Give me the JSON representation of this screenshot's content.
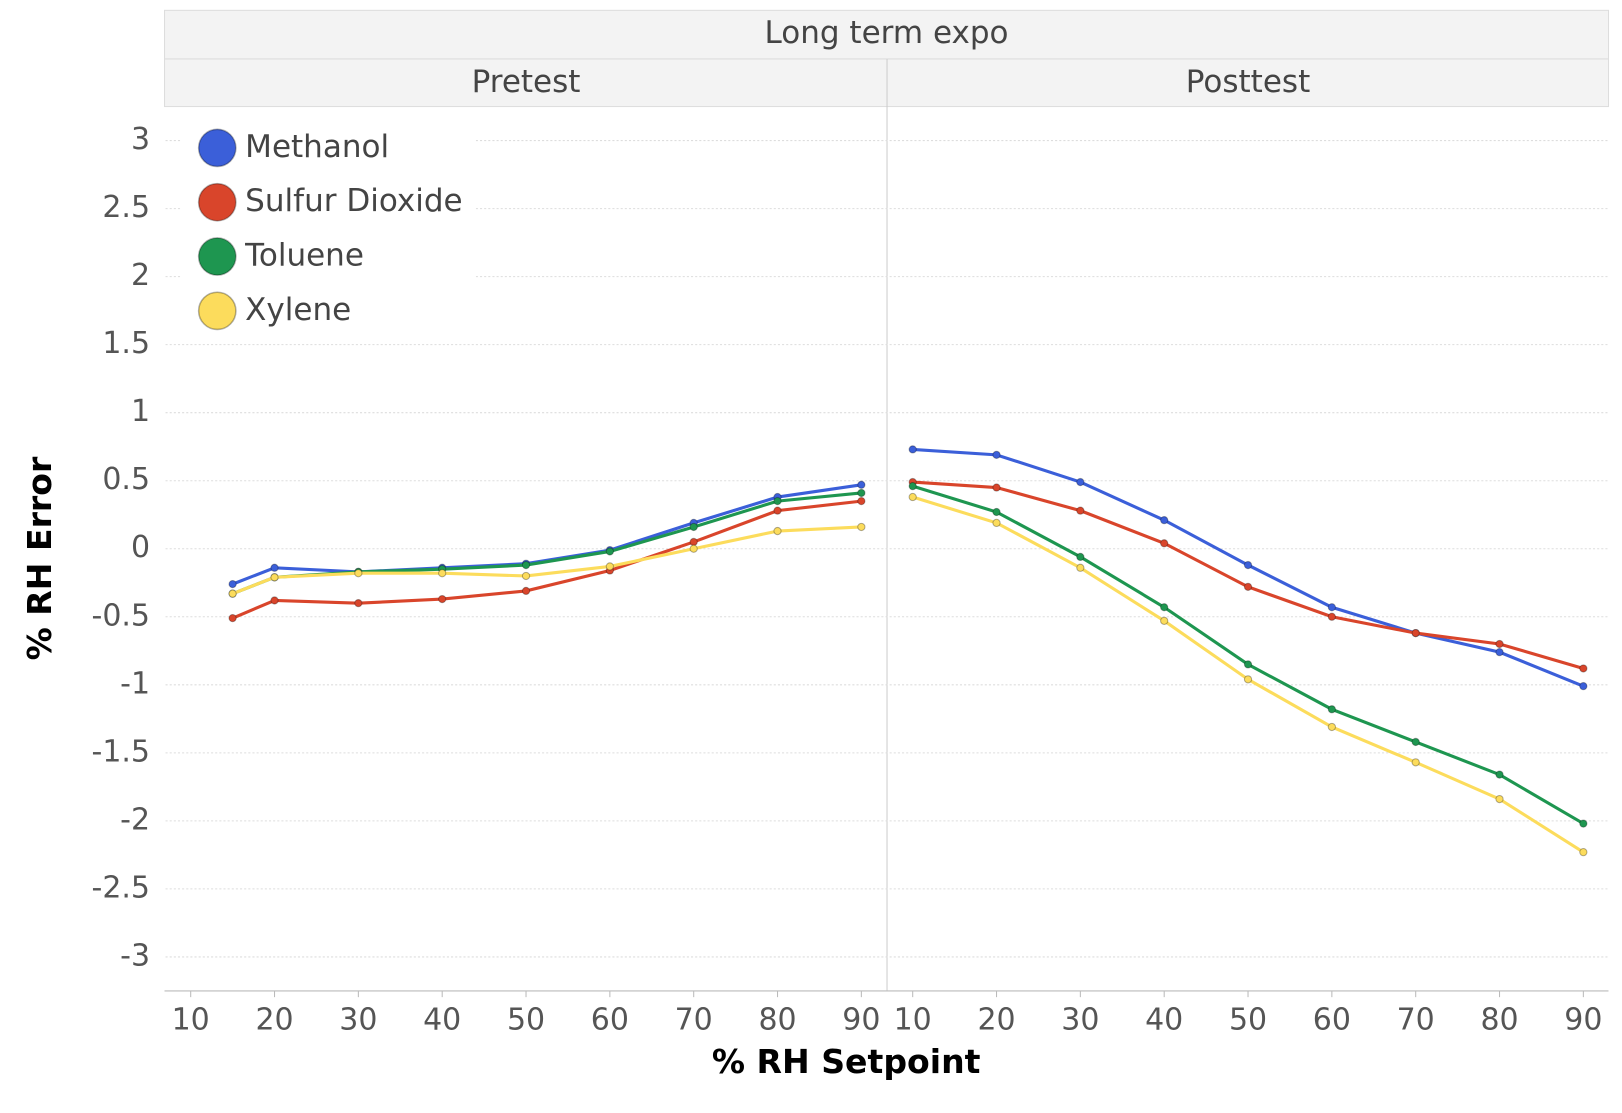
{
  "chart_data": {
    "type": "line",
    "title": "Long term expo",
    "x_label": "% RH Setpoint",
    "y_label": "% RH Error",
    "ylim": [
      -3.25,
      3.25
    ],
    "yticks": [
      3,
      2.5,
      2,
      1.5,
      1,
      0.5,
      0,
      -0.5,
      -1,
      -1.5,
      -2,
      -2.5,
      -3
    ],
    "grid": true,
    "legend": "upper left",
    "panels": [
      {
        "title": "Pretest",
        "x": [
          15,
          20,
          30,
          40,
          50,
          60,
          70,
          80,
          90
        ],
        "xlim": [
          7,
          93
        ],
        "xticks": [
          10,
          20,
          30,
          40,
          50,
          60,
          70,
          80,
          90
        ]
      },
      {
        "title": "Posttest",
        "x": [
          10,
          20,
          30,
          40,
          50,
          60,
          70,
          80,
          90
        ],
        "xlim": [
          7,
          93
        ],
        "xticks": [
          10,
          20,
          30,
          40,
          50,
          60,
          70,
          80,
          90
        ]
      }
    ],
    "series": [
      {
        "name": "Methanol",
        "color": "#3b5fd9",
        "values": [
          [
            -0.26,
            -0.14,
            -0.17,
            -0.14,
            -0.11,
            -0.01,
            0.19,
            0.38,
            0.47
          ],
          [
            0.73,
            0.69,
            0.49,
            0.21,
            -0.12,
            -0.43,
            -0.62,
            -0.76,
            -1.01
          ]
        ]
      },
      {
        "name": "Sulfur Dioxide",
        "color": "#d9452b",
        "values": [
          [
            -0.51,
            -0.38,
            -0.4,
            -0.37,
            -0.31,
            -0.16,
            0.05,
            0.28,
            0.35
          ],
          [
            0.49,
            0.45,
            0.28,
            0.04,
            -0.28,
            -0.5,
            -0.62,
            -0.7,
            -0.88
          ]
        ]
      },
      {
        "name": "Toluene",
        "color": "#1e9650",
        "values": [
          [
            -0.33,
            -0.21,
            -0.17,
            -0.15,
            -0.12,
            -0.02,
            0.16,
            0.35,
            0.41
          ],
          [
            0.46,
            0.27,
            -0.06,
            -0.43,
            -0.85,
            -1.18,
            -1.42,
            -1.66,
            -2.02
          ]
        ]
      },
      {
        "name": "Xylene",
        "color": "#fcdc5c",
        "values": [
          [
            -0.33,
            -0.21,
            -0.18,
            -0.18,
            -0.2,
            -0.13,
            0.0,
            0.13,
            0.16
          ],
          [
            0.38,
            0.19,
            -0.14,
            -0.53,
            -0.96,
            -1.31,
            -1.57,
            -1.84,
            -2.23
          ]
        ]
      }
    ]
  }
}
